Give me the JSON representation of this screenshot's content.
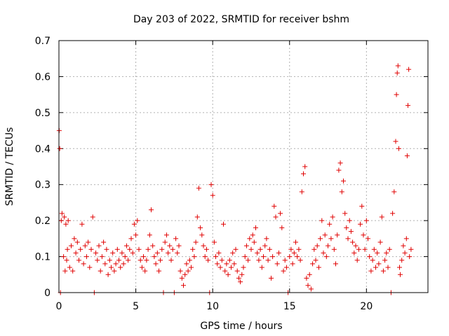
{
  "chart_data": {
    "type": "scatter",
    "title": "Day 203 of 2022, SRMTID for receiver bshm",
    "xlabel": "GPS time / hours",
    "ylabel": "SRMTID / TECUs",
    "xlim": [
      0,
      24
    ],
    "ylim": [
      0,
      0.7
    ],
    "grid": true,
    "x_ticks": [
      0,
      5,
      10,
      15,
      20
    ],
    "x_tick_labels": [
      "0",
      "5",
      "10",
      "15",
      "20"
    ],
    "y_ticks": [
      0,
      0.1,
      0.2,
      0.3,
      0.4,
      0.5,
      0.6,
      0.7
    ],
    "y_tick_labels": [
      "0",
      "0.1",
      "0.2",
      "0.3",
      "0.4",
      "0.5",
      "0.6",
      "0.7"
    ],
    "marker": "+",
    "series": [
      {
        "name": "SRMTID",
        "color": "#e00000",
        "points": [
          [
            0.02,
            0.45
          ],
          [
            0.05,
            0.4
          ],
          [
            0.1,
            0.0
          ],
          [
            0.15,
            0.2
          ],
          [
            0.2,
            0.22
          ],
          [
            0.3,
            0.1
          ],
          [
            0.35,
            0.21
          ],
          [
            0.4,
            0.06
          ],
          [
            0.45,
            0.19
          ],
          [
            0.5,
            0.09
          ],
          [
            0.55,
            0.12
          ],
          [
            0.6,
            0.2
          ],
          [
            0.7,
            0.07
          ],
          [
            0.8,
            0.13
          ],
          [
            0.9,
            0.06
          ],
          [
            1.0,
            0.15
          ],
          [
            1.1,
            0.11
          ],
          [
            1.2,
            0.14
          ],
          [
            1.3,
            0.09
          ],
          [
            1.4,
            0.12
          ],
          [
            1.5,
            0.19
          ],
          [
            1.6,
            0.08
          ],
          [
            1.7,
            0.13
          ],
          [
            1.8,
            0.1
          ],
          [
            1.9,
            0.14
          ],
          [
            2.0,
            0.07
          ],
          [
            2.1,
            0.12
          ],
          [
            2.2,
            0.21
          ],
          [
            2.3,
            0.0
          ],
          [
            2.4,
            0.11
          ],
          [
            2.5,
            0.09
          ],
          [
            2.6,
            0.13
          ],
          [
            2.7,
            0.06
          ],
          [
            2.8,
            0.1
          ],
          [
            2.9,
            0.14
          ],
          [
            3.0,
            0.08
          ],
          [
            3.1,
            0.12
          ],
          [
            3.2,
            0.05
          ],
          [
            3.3,
            0.09
          ],
          [
            3.4,
            0.07
          ],
          [
            3.5,
            0.11
          ],
          [
            3.6,
            0.06
          ],
          [
            3.7,
            0.08
          ],
          [
            3.8,
            0.12
          ],
          [
            3.9,
            0.09
          ],
          [
            4.0,
            0.07
          ],
          [
            4.1,
            0.11
          ],
          [
            4.2,
            0.08
          ],
          [
            4.3,
            0.1
          ],
          [
            4.4,
            0.13
          ],
          [
            4.5,
            0.09
          ],
          [
            4.6,
            0.12
          ],
          [
            4.7,
            0.15
          ],
          [
            4.8,
            0.11
          ],
          [
            4.9,
            0.19
          ],
          [
            5.0,
            0.16
          ],
          [
            5.1,
            0.2
          ],
          [
            5.2,
            0.12
          ],
          [
            5.3,
            0.09
          ],
          [
            5.4,
            0.07
          ],
          [
            5.5,
            0.1
          ],
          [
            5.6,
            0.06
          ],
          [
            5.7,
            0.09
          ],
          [
            5.8,
            0.12
          ],
          [
            5.9,
            0.16
          ],
          [
            6.0,
            0.23
          ],
          [
            6.1,
            0.13
          ],
          [
            6.2,
            0.1
          ],
          [
            6.3,
            0.08
          ],
          [
            6.4,
            0.11
          ],
          [
            6.5,
            0.06
          ],
          [
            6.6,
            0.09
          ],
          [
            6.7,
            0.12
          ],
          [
            6.8,
            0.0
          ],
          [
            6.9,
            0.14
          ],
          [
            7.0,
            0.16
          ],
          [
            7.1,
            0.11
          ],
          [
            7.2,
            0.13
          ],
          [
            7.3,
            0.09
          ],
          [
            7.4,
            0.12
          ],
          [
            7.5,
            0.0
          ],
          [
            7.6,
            0.15
          ],
          [
            7.7,
            0.11
          ],
          [
            7.8,
            0.13
          ],
          [
            7.9,
            0.06
          ],
          [
            8.0,
            0.04
          ],
          [
            8.1,
            0.02
          ],
          [
            8.2,
            0.05
          ],
          [
            8.3,
            0.08
          ],
          [
            8.4,
            0.06
          ],
          [
            8.5,
            0.09
          ],
          [
            8.6,
            0.07
          ],
          [
            8.7,
            0.12
          ],
          [
            8.8,
            0.1
          ],
          [
            8.9,
            0.14
          ],
          [
            9.0,
            0.21
          ],
          [
            9.1,
            0.29
          ],
          [
            9.2,
            0.18
          ],
          [
            9.3,
            0.16
          ],
          [
            9.4,
            0.13
          ],
          [
            9.5,
            0.1
          ],
          [
            9.6,
            0.12
          ],
          [
            9.7,
            0.09
          ],
          [
            9.8,
            0.0
          ],
          [
            9.9,
            0.3
          ],
          [
            10.0,
            0.27
          ],
          [
            10.1,
            0.14
          ],
          [
            10.2,
            0.1
          ],
          [
            10.3,
            0.08
          ],
          [
            10.4,
            0.11
          ],
          [
            10.5,
            0.07
          ],
          [
            10.6,
            0.09
          ],
          [
            10.7,
            0.19
          ],
          [
            10.8,
            0.06
          ],
          [
            10.9,
            0.08
          ],
          [
            11.0,
            0.05
          ],
          [
            11.1,
            0.09
          ],
          [
            11.2,
            0.07
          ],
          [
            11.3,
            0.11
          ],
          [
            11.4,
            0.08
          ],
          [
            11.5,
            0.12
          ],
          [
            11.6,
            0.06
          ],
          [
            11.7,
            0.04
          ],
          [
            11.8,
            0.03
          ],
          [
            11.9,
            0.05
          ],
          [
            12.0,
            0.07
          ],
          [
            12.1,
            0.1
          ],
          [
            12.2,
            0.13
          ],
          [
            12.3,
            0.09
          ],
          [
            12.4,
            0.15
          ],
          [
            12.5,
            0.12
          ],
          [
            12.6,
            0.16
          ],
          [
            12.7,
            0.14
          ],
          [
            12.8,
            0.18
          ],
          [
            12.9,
            0.11
          ],
          [
            13.0,
            0.09
          ],
          [
            13.1,
            0.12
          ],
          [
            13.2,
            0.07
          ],
          [
            13.3,
            0.1
          ],
          [
            13.4,
            0.13
          ],
          [
            13.5,
            0.15
          ],
          [
            13.6,
            0.09
          ],
          [
            13.7,
            0.12
          ],
          [
            13.8,
            0.04
          ],
          [
            13.9,
            0.1
          ],
          [
            14.0,
            0.24
          ],
          [
            14.1,
            0.21
          ],
          [
            14.2,
            0.08
          ],
          [
            14.3,
            0.11
          ],
          [
            14.4,
            0.22
          ],
          [
            14.5,
            0.18
          ],
          [
            14.6,
            0.06
          ],
          [
            14.7,
            0.09
          ],
          [
            14.8,
            0.07
          ],
          [
            14.9,
            0.0
          ],
          [
            15.0,
            0.1
          ],
          [
            15.1,
            0.12
          ],
          [
            15.2,
            0.08
          ],
          [
            15.3,
            0.11
          ],
          [
            15.4,
            0.14
          ],
          [
            15.5,
            0.1
          ],
          [
            15.6,
            0.12
          ],
          [
            15.7,
            0.09
          ],
          [
            15.8,
            0.28
          ],
          [
            15.9,
            0.33
          ],
          [
            16.0,
            0.35
          ],
          [
            16.1,
            0.04
          ],
          [
            16.2,
            0.02
          ],
          [
            16.3,
            0.05
          ],
          [
            16.4,
            0.01
          ],
          [
            16.5,
            0.08
          ],
          [
            16.6,
            0.12
          ],
          [
            16.7,
            0.09
          ],
          [
            16.8,
            0.13
          ],
          [
            16.9,
            0.07
          ],
          [
            17.0,
            0.15
          ],
          [
            17.1,
            0.2
          ],
          [
            17.2,
            0.11
          ],
          [
            17.3,
            0.16
          ],
          [
            17.4,
            0.1
          ],
          [
            17.5,
            0.13
          ],
          [
            17.6,
            0.19
          ],
          [
            17.7,
            0.15
          ],
          [
            17.8,
            0.21
          ],
          [
            17.9,
            0.12
          ],
          [
            18.0,
            0.08
          ],
          [
            18.1,
            0.16
          ],
          [
            18.2,
            0.34
          ],
          [
            18.3,
            0.36
          ],
          [
            18.4,
            0.28
          ],
          [
            18.5,
            0.31
          ],
          [
            18.6,
            0.22
          ],
          [
            18.7,
            0.18
          ],
          [
            18.8,
            0.15
          ],
          [
            18.9,
            0.2
          ],
          [
            19.0,
            0.17
          ],
          [
            19.1,
            0.14
          ],
          [
            19.2,
            0.11
          ],
          [
            19.3,
            0.13
          ],
          [
            19.4,
            0.09
          ],
          [
            19.5,
            0.12
          ],
          [
            19.6,
            0.19
          ],
          [
            19.7,
            0.24
          ],
          [
            19.8,
            0.16
          ],
          [
            19.9,
            0.12
          ],
          [
            20.0,
            0.2
          ],
          [
            20.1,
            0.15
          ],
          [
            20.2,
            0.1
          ],
          [
            20.3,
            0.06
          ],
          [
            20.4,
            0.09
          ],
          [
            20.5,
            0.12
          ],
          [
            20.6,
            0.07
          ],
          [
            20.7,
            0.11
          ],
          [
            20.8,
            0.08
          ],
          [
            20.9,
            0.14
          ],
          [
            21.0,
            0.21
          ],
          [
            21.1,
            0.06
          ],
          [
            21.2,
            0.09
          ],
          [
            21.3,
            0.11
          ],
          [
            21.4,
            0.07
          ],
          [
            21.5,
            0.12
          ],
          [
            21.6,
            0.0
          ],
          [
            21.7,
            0.22
          ],
          [
            21.8,
            0.28
          ],
          [
            21.9,
            0.42
          ],
          [
            21.95,
            0.55
          ],
          [
            22.0,
            0.61
          ],
          [
            22.05,
            0.63
          ],
          [
            22.1,
            0.4
          ],
          [
            22.15,
            0.07
          ],
          [
            22.2,
            0.05
          ],
          [
            22.3,
            0.09
          ],
          [
            22.4,
            0.13
          ],
          [
            22.5,
            0.11
          ],
          [
            22.6,
            0.15
          ],
          [
            22.65,
            0.38
          ],
          [
            22.7,
            0.52
          ],
          [
            22.75,
            0.62
          ],
          [
            22.8,
            0.1
          ],
          [
            22.9,
            0.12
          ]
        ]
      }
    ]
  }
}
